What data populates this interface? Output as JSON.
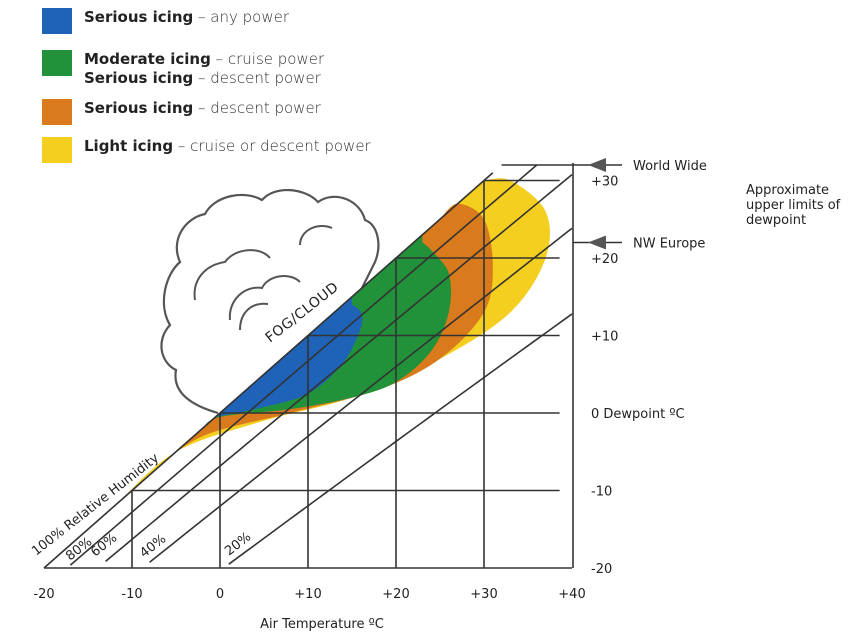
{
  "legend": [
    {
      "lines": [
        {
          "bold": "Serious icing",
          "rest": " – any power"
        }
      ],
      "color": "#1f63b8"
    },
    {
      "lines": [
        {
          "bold": "Moderate icing",
          "rest": " – cruise power"
        },
        {
          "bold": "Serious icing",
          "rest": " – descent power"
        }
      ],
      "color": "#21913a"
    },
    {
      "lines": [
        {
          "bold": "Serious icing",
          "rest": " – descent power"
        }
      ],
      "color": "#d97a1c"
    },
    {
      "lines": [
        {
          "bold": "Light icing",
          "rest": " – cruise or descent power"
        }
      ],
      "color": "#f5cf1f"
    }
  ],
  "chart_data": {
    "type": "area",
    "xlabel": "Air Temperature ºC",
    "x_ticks": [
      "-20",
      "-10",
      "0",
      "+10",
      "+20",
      "+30",
      "+40"
    ],
    "y_ticks": [
      "+30",
      "+20",
      "+10",
      "0 Dewpoint ºC",
      "-10",
      "-20"
    ],
    "xlim": [
      -20,
      40
    ],
    "ylim": [
      -20,
      30
    ],
    "grid": true,
    "fog_label": "FOG/CLOUD",
    "limits_title": "Approximate upper limits of dewpoint",
    "limit_markers": [
      {
        "label": "World Wide",
        "dewpoint": 32
      },
      {
        "label": "NW Europe",
        "dewpoint": 22
      }
    ],
    "humidity_lines": [
      {
        "label": "100% Relative Humidity",
        "rh": 100
      },
      {
        "label": "80%",
        "rh": 80
      },
      {
        "label": "60%",
        "rh": 60
      },
      {
        "label": "40%",
        "rh": 40
      },
      {
        "label": "20%",
        "rh": 20
      }
    ],
    "series": [
      {
        "name": "Light icing – cruise or descent power",
        "color": "#f5cf1f",
        "boundary": [
          [
            -16,
            -14
          ],
          [
            -12,
            -9
          ],
          [
            -5,
            -4
          ],
          [
            5,
            -1
          ],
          [
            15,
            2
          ],
          [
            25,
            7
          ],
          [
            33,
            13
          ],
          [
            37,
            20
          ],
          [
            37,
            26
          ],
          [
            33,
            30
          ],
          [
            30,
            30
          ]
        ]
      },
      {
        "name": "Serious icing – descent power",
        "color": "#d97a1c",
        "boundary": [
          [
            -12,
            -7
          ],
          [
            -8,
            -5
          ],
          [
            -2,
            -3
          ],
          [
            8,
            0
          ],
          [
            18,
            3
          ],
          [
            25,
            7
          ],
          [
            30,
            13
          ],
          [
            31,
            19
          ],
          [
            30,
            25
          ],
          [
            27,
            28
          ],
          [
            25,
            28
          ]
        ]
      },
      {
        "name": "Moderate icing – cruise power / Serious icing – descent power",
        "color": "#21913a",
        "boundary": [
          [
            -2,
            0
          ],
          [
            0,
            -0.5
          ],
          [
            8,
            0.5
          ],
          [
            15,
            2
          ],
          [
            20,
            4
          ],
          [
            24,
            8
          ],
          [
            26,
            13
          ],
          [
            26,
            18
          ],
          [
            24,
            21
          ],
          [
            23,
            22
          ]
        ]
      },
      {
        "name": "Serious icing – any power",
        "color": "#1f63b8",
        "boundary": [
          [
            -0.5,
            0
          ],
          [
            4,
            0.5
          ],
          [
            10,
            2.5
          ],
          [
            14,
            6.5
          ],
          [
            16,
            11
          ],
          [
            16,
            13
          ],
          [
            15,
            14
          ]
        ]
      }
    ]
  }
}
